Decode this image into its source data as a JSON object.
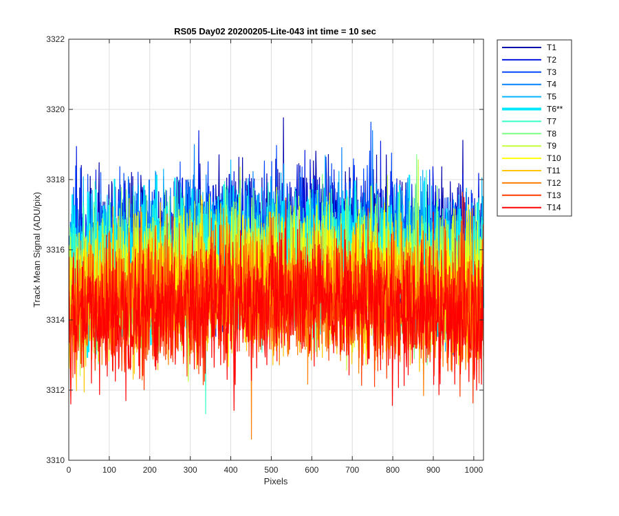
{
  "chart_data": {
    "type": "line",
    "title": "RS05 Day02 20200205-Lite-043 int time = 10 sec",
    "xlabel": "Pixels",
    "ylabel": "Track Mean Signal (ADU/pix)",
    "xlim": [
      0,
      1024
    ],
    "ylim": [
      3310,
      3322
    ],
    "x_ticks": [
      0,
      100,
      200,
      300,
      400,
      500,
      600,
      700,
      800,
      900,
      1000
    ],
    "y_ticks": [
      3310,
      3312,
      3314,
      3316,
      3318,
      3320,
      3322
    ],
    "grid": true,
    "legend_position": "outside-right",
    "x_range": [
      1,
      1024
    ],
    "series": [
      {
        "name": "T1",
        "color": "#0000ad",
        "mean": 3316.6,
        "noise_sd": 0.9
      },
      {
        "name": "T2",
        "color": "#0015e1",
        "mean": 3316.4,
        "noise_sd": 0.9
      },
      {
        "name": "T3",
        "color": "#0046ff",
        "mean": 3316.3,
        "noise_sd": 0.9
      },
      {
        "name": "T4",
        "color": "#0080ff",
        "mean": 3316.1,
        "noise_sd": 0.9
      },
      {
        "name": "T5",
        "color": "#00b4ff",
        "mean": 3316.0,
        "noise_sd": 0.9
      },
      {
        "name": "T6**",
        "color": "#00e8ff",
        "mean": 3315.8,
        "noise_sd": 0.9,
        "highlighted": true
      },
      {
        "name": "T7",
        "color": "#36ffc8",
        "mean": 3315.7,
        "noise_sd": 0.9
      },
      {
        "name": "T8",
        "color": "#7dff82",
        "mean": 3315.5,
        "noise_sd": 0.9
      },
      {
        "name": "T9",
        "color": "#c4ff3b",
        "mean": 3315.4,
        "noise_sd": 0.9
      },
      {
        "name": "T10",
        "color": "#ffff00",
        "mean": 3315.2,
        "noise_sd": 0.9
      },
      {
        "name": "T11",
        "color": "#ffc400",
        "mean": 3315.0,
        "noise_sd": 0.9
      },
      {
        "name": "T12",
        "color": "#ff7d00",
        "mean": 3314.8,
        "noise_sd": 0.9
      },
      {
        "name": "T13",
        "color": "#ff3b00",
        "mean": 3314.6,
        "noise_sd": 0.9
      },
      {
        "name": "T14",
        "color": "#ff0000",
        "mean": 3314.5,
        "noise_sd": 0.9
      }
    ]
  }
}
